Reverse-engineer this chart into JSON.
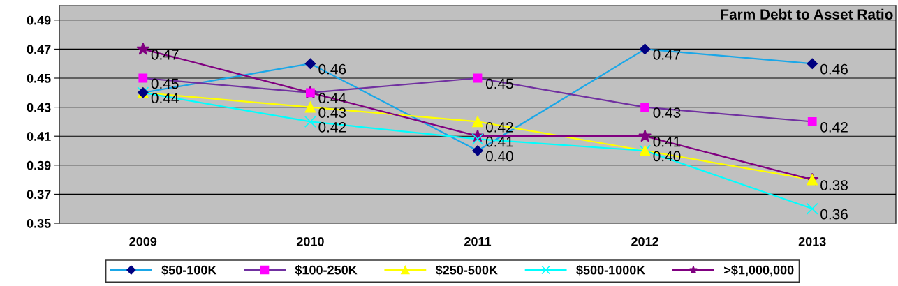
{
  "chart_data": {
    "type": "line",
    "title": "Farm Debt to Asset Ratio",
    "categories": [
      "2009",
      "2010",
      "2011",
      "2012",
      "2013"
    ],
    "series": [
      {
        "name": "$50-100K",
        "color": "#1aa7e8",
        "colors": [
          "#000080",
          "#000080",
          "#000080",
          "#000080",
          "#000080"
        ],
        "marker": "diamond",
        "values": [
          0.44,
          0.46,
          0.4,
          0.47,
          0.46
        ],
        "value_labels": [
          null,
          "0.46",
          "0.40",
          "0.47",
          "0.46"
        ]
      },
      {
        "name": "$100-250K",
        "color": "#7030a0",
        "colors": [
          "#ff00ff",
          "#ff00ff",
          "#ff00ff",
          "#ff00ff",
          "#ff00ff"
        ],
        "marker": "square",
        "values": [
          0.45,
          0.44,
          0.45,
          0.43,
          0.42
        ],
        "value_labels": [
          "0.45",
          null,
          "0.45",
          "0.43",
          "0.42"
        ]
      },
      {
        "name": "$250-500K",
        "color": "#ffff00",
        "colors": [
          "#ffff00",
          "#ffff00",
          "#ffff00",
          "#ffff00",
          "#ffff00"
        ],
        "marker": "triangle",
        "values": [
          0.44,
          0.43,
          0.42,
          0.4,
          0.38
        ],
        "value_labels": [
          null,
          "0.43",
          "0.42",
          null,
          null
        ]
      },
      {
        "name": "$500-1000K",
        "color": "#00ffff",
        "colors": [
          "#00ffff",
          "#00ffff",
          "#00ffff",
          "#00ffff",
          "#00ffff"
        ],
        "marker": "cross",
        "values": [
          0.44,
          0.42,
          0.408,
          0.4,
          0.36
        ],
        "value_labels": [
          "0.44",
          "0.42",
          null,
          "0.40",
          "0.36"
        ]
      },
      {
        "name": ">$1,000,000",
        "color": "#800080",
        "colors": [
          "#800080",
          "#800080",
          "#800080",
          "#800080",
          "#800080"
        ],
        "marker": "star",
        "values": [
          0.47,
          0.44,
          0.41,
          0.41,
          0.38
        ],
        "value_labels": [
          "0.47",
          "0.44",
          "0.41",
          "0.41",
          "0.38"
        ]
      }
    ],
    "ylim": [
      0.35,
      0.5
    ],
    "yticks": [
      0.35,
      0.37,
      0.39,
      0.41,
      0.43,
      0.45,
      0.47,
      0.49
    ],
    "grid": "y",
    "legend": "bottom",
    "line_style": "solid"
  }
}
